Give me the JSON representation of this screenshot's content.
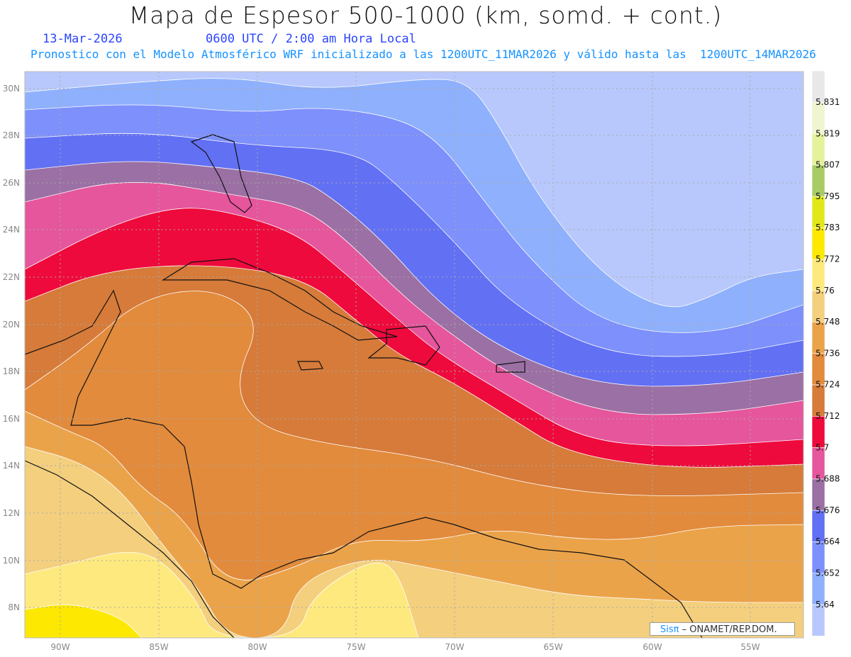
{
  "header": {
    "title": "Mapa de Espesor 500-1000 (km, somd. + cont.)",
    "date": "13-Mar-2026",
    "time": "0600 UTC / 2:00 am Hora Local",
    "subtitle": "Pronostico con el Modelo Atmosférico WRF inicializado a las 1200UTC_11MAR2026 y válido hasta las  1200UTC_14MAR2026"
  },
  "map": {
    "lat_labels": [
      "30N",
      "28N",
      "26N",
      "24N",
      "22N",
      "20N",
      "18N",
      "16N",
      "14N",
      "12N",
      "10N",
      "8N"
    ],
    "lon_labels": [
      "90W",
      "85W",
      "80W",
      "75W",
      "70W",
      "65W",
      "60W",
      "55W"
    ]
  },
  "colorbar": {
    "labels": [
      "5.831",
      "5.819",
      "5.807",
      "5.795",
      "5.783",
      "5.772",
      "5.76",
      "5.748",
      "5.736",
      "5.724",
      "5.712",
      "5.7",
      "5.688",
      "5.676",
      "5.664",
      "5.652",
      "5.64"
    ],
    "colors": [
      "#e8e8e8",
      "#eef5d0",
      "#e4f29c",
      "#a8cc64",
      "#e0e81a",
      "#fce800",
      "#fde97e",
      "#f3cf7e",
      "#eba34a",
      "#e28b3c",
      "#d67b3a",
      "#ee0a3c",
      "#e6569c",
      "#9b70a4",
      "#6270f4",
      "#7d90fc",
      "#8fb0fc",
      "#b8c8fc"
    ]
  },
  "credit": {
    "brand": "Sisπ",
    "text": " – ONAMET/REP.DOM."
  }
}
